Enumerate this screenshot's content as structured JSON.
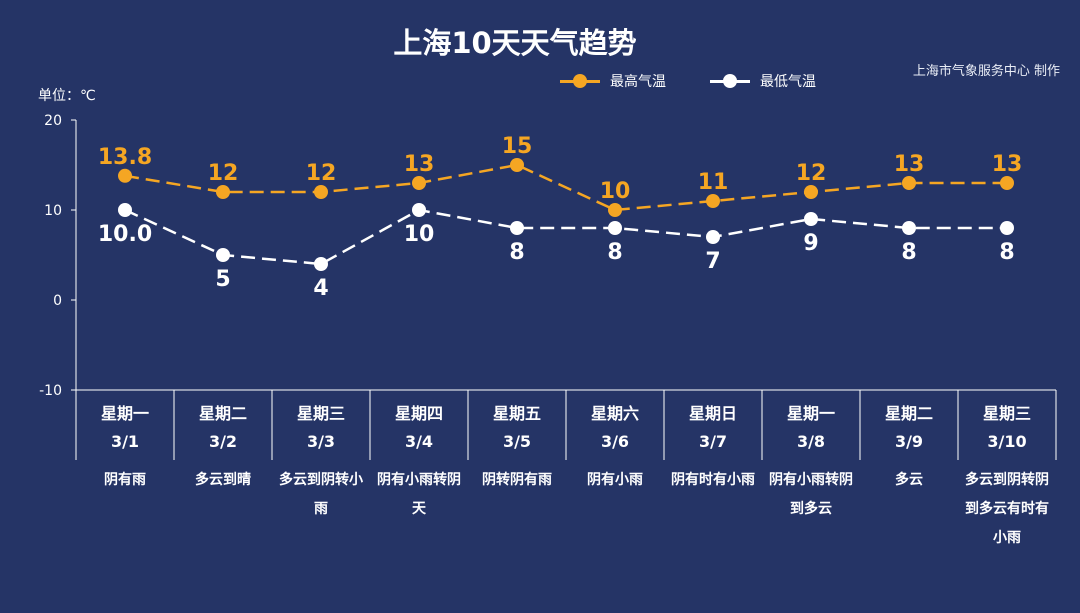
{
  "title": "上海10天天气趋势",
  "source": "上海市气象服务中心 制作",
  "unit_label": "单位：℃",
  "colors": {
    "background": "#253466",
    "high": "#f5a623",
    "low": "#ffffff",
    "axis": "#ffffff"
  },
  "legend": [
    {
      "name": "最高气温",
      "color": "#f5a623"
    },
    {
      "name": "最低气温",
      "color": "#ffffff"
    }
  ],
  "days": [
    {
      "weekday": "星期一",
      "date": "3/1",
      "weather": "阴有雨"
    },
    {
      "weekday": "星期二",
      "date": "3/2",
      "weather": "多云到晴"
    },
    {
      "weekday": "星期三",
      "date": "3/3",
      "weather": "多云到阴转小雨"
    },
    {
      "weekday": "星期四",
      "date": "3/4",
      "weather": "阴有小雨转阴天"
    },
    {
      "weekday": "星期五",
      "date": "3/5",
      "weather": "阴转阴有雨"
    },
    {
      "weekday": "星期六",
      "date": "3/6",
      "weather": "阴有小雨"
    },
    {
      "weekday": "星期日",
      "date": "3/7",
      "weather": "阴有时有小雨"
    },
    {
      "weekday": "星期一",
      "date": "3/8",
      "weather": "阴有小雨转阴到多云"
    },
    {
      "weekday": "星期二",
      "date": "3/9",
      "weather": "多云"
    },
    {
      "weekday": "星期三",
      "date": "3/10",
      "weather": "多云到阴转阴到多云有时有小雨"
    }
  ],
  "chart_data": {
    "type": "line",
    "title": "上海10天天气趋势",
    "ylabel": "单位：℃",
    "ylim": [
      -10,
      20
    ],
    "yticks": [
      20,
      10,
      0,
      -10
    ],
    "grid": false,
    "legend_position": "top-right",
    "categories": [
      "3/1",
      "3/2",
      "3/3",
      "3/4",
      "3/5",
      "3/6",
      "3/7",
      "3/8",
      "3/9",
      "3/10"
    ],
    "series": [
      {
        "name": "最高气温",
        "color": "#f5a623",
        "values": [
          13.8,
          12,
          12,
          13,
          15,
          10,
          11,
          12,
          13,
          13
        ],
        "labels": [
          "13.8",
          "12",
          "12",
          "13",
          "15",
          "10",
          "11",
          "12",
          "13",
          "13"
        ]
      },
      {
        "name": "最低气温",
        "color": "#ffffff",
        "values": [
          10,
          5,
          4,
          10,
          8,
          8,
          7,
          9,
          8,
          8
        ],
        "labels": [
          "10.0",
          "5",
          "4",
          "10",
          "8",
          "8",
          "7",
          "9",
          "8",
          "8"
        ]
      }
    ]
  }
}
